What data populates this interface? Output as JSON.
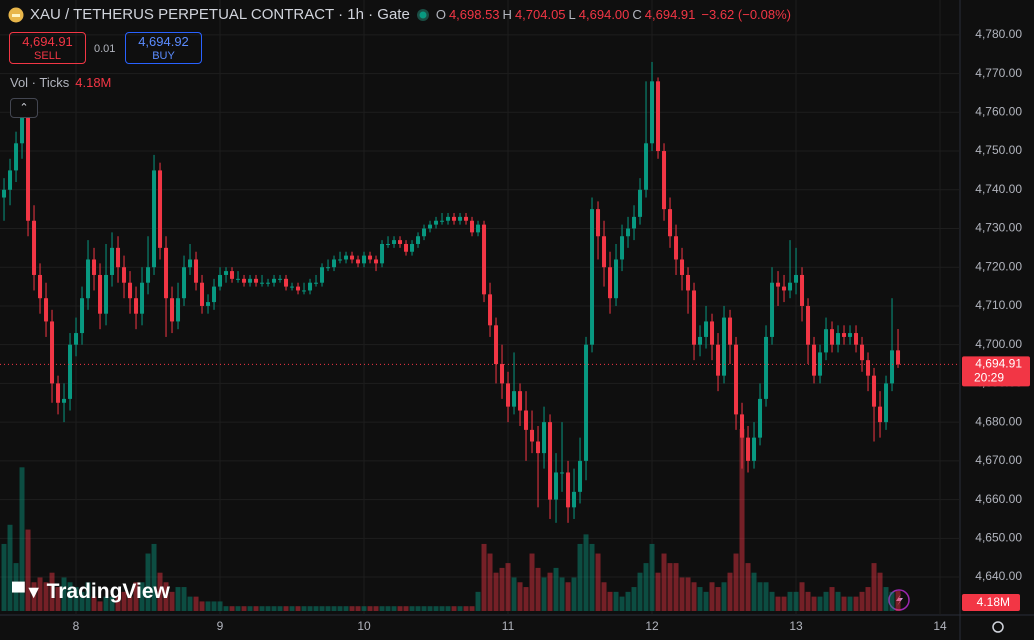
{
  "chart_data": {
    "type": "candlestick",
    "ylim": [
      4630.2,
      4789.0
    ],
    "xlim": [
      -0.67,
      159.33
    ],
    "yticks": [
      {
        "value": 4780,
        "label": "4,780.00"
      },
      {
        "value": 4770,
        "label": "4,770.00"
      },
      {
        "value": 4760,
        "label": "4,760.00"
      },
      {
        "value": 4750,
        "label": "4,750.00"
      },
      {
        "value": 4740,
        "label": "4,740.00"
      },
      {
        "value": 4730,
        "label": "4,730.00"
      },
      {
        "value": 4720,
        "label": "4,720.00"
      },
      {
        "value": 4710,
        "label": "4,710.00"
      },
      {
        "value": 4700,
        "label": "4,700.00"
      },
      {
        "value": 4690,
        "label": "4,690.00"
      },
      {
        "value": 4680,
        "label": "4,680.00"
      },
      {
        "value": 4670,
        "label": "4,670.00"
      },
      {
        "value": 4660,
        "label": "4,660.00"
      },
      {
        "value": 4650,
        "label": "4,650.00"
      },
      {
        "value": 4640,
        "label": "4,640.00"
      }
    ],
    "xticks": [
      {
        "value": 12,
        "label": "8"
      },
      {
        "value": 36,
        "label": "9"
      },
      {
        "value": 60,
        "label": "10"
      },
      {
        "value": 84,
        "label": "11"
      },
      {
        "value": 108,
        "label": "12"
      },
      {
        "value": 132,
        "label": "13"
      },
      {
        "value": 156,
        "label": "14"
      }
    ],
    "up_color": "#089981",
    "down_color": "#f23645",
    "grid": true,
    "candles": [
      [
        4738,
        4743,
        4732,
        4740
      ],
      [
        4740,
        4748,
        4736,
        4745
      ],
      [
        4745,
        4755,
        4742,
        4752
      ],
      [
        4752,
        4762,
        4748,
        4760
      ],
      [
        4760,
        4762,
        4728,
        4732
      ],
      [
        4732,
        4736,
        4714,
        4718
      ],
      [
        4718,
        4721,
        4708,
        4712
      ],
      [
        4712,
        4716,
        4702,
        4706
      ],
      [
        4706,
        4709,
        4685,
        4690
      ],
      [
        4690,
        4692,
        4682,
        4685
      ],
      [
        4685,
        4690,
        4680,
        4686
      ],
      [
        4686,
        4703,
        4683,
        4700
      ],
      [
        4700,
        4707,
        4697,
        4703
      ],
      [
        4703,
        4715,
        4700,
        4712
      ],
      [
        4712,
        4727,
        4709,
        4722
      ],
      [
        4722,
        4725,
        4714,
        4718
      ],
      [
        4718,
        4721,
        4704,
        4708
      ],
      [
        4708,
        4726,
        4705,
        4718
      ],
      [
        4718,
        4729,
        4715,
        4725
      ],
      [
        4725,
        4728,
        4716,
        4720
      ],
      [
        4720,
        4723,
        4712,
        4716
      ],
      [
        4716,
        4719,
        4708,
        4712
      ],
      [
        4712,
        4715,
        4704,
        4708
      ],
      [
        4708,
        4720,
        4705,
        4716
      ],
      [
        4716,
        4728,
        4713,
        4720
      ],
      [
        4720,
        4749,
        4718,
        4745
      ],
      [
        4745,
        4747,
        4722,
        4725
      ],
      [
        4725,
        4728,
        4702,
        4712
      ],
      [
        4712,
        4715,
        4703,
        4706
      ],
      [
        4706,
        4716,
        4704,
        4712
      ],
      [
        4712,
        4723,
        4710,
        4720
      ],
      [
        4720,
        4726,
        4718,
        4722
      ],
      [
        4722,
        4724,
        4714,
        4716
      ],
      [
        4716,
        4718,
        4708,
        4710
      ],
      [
        4710,
        4713,
        4708,
        4711
      ],
      [
        4711,
        4717,
        4709,
        4715
      ],
      [
        4715,
        4720,
        4714,
        4718
      ],
      [
        4718,
        4720,
        4716,
        4719
      ],
      [
        4719,
        4720,
        4716,
        4717
      ],
      [
        4717,
        4719,
        4716,
        4717
      ],
      [
        4717,
        4718,
        4715,
        4716
      ],
      [
        4716,
        4718,
        4715,
        4717
      ],
      [
        4717,
        4718,
        4715,
        4716
      ],
      [
        4716,
        4718,
        4715,
        4716
      ],
      [
        4716,
        4717,
        4715,
        4716
      ],
      [
        4716,
        4718,
        4715,
        4717
      ],
      [
        4717,
        4718,
        4716,
        4717
      ],
      [
        4717,
        4718,
        4714,
        4715
      ],
      [
        4715,
        4716,
        4714,
        4715
      ],
      [
        4715,
        4716,
        4713,
        4714
      ],
      [
        4714,
        4716,
        4713,
        4714
      ],
      [
        4714,
        4717,
        4713,
        4716
      ],
      [
        4716,
        4718,
        4715,
        4716
      ],
      [
        4716,
        4721,
        4715,
        4720
      ],
      [
        4720,
        4722,
        4719,
        4720
      ],
      [
        4720,
        4723,
        4719,
        4722
      ],
      [
        4722,
        4724,
        4721,
        4722
      ],
      [
        4722,
        4724,
        4721,
        4723
      ],
      [
        4723,
        4724,
        4721,
        4722
      ],
      [
        4722,
        4723,
        4720,
        4721
      ],
      [
        4721,
        4724,
        4720,
        4723
      ],
      [
        4723,
        4724,
        4721,
        4722
      ],
      [
        4722,
        4723,
        4719,
        4721
      ],
      [
        4721,
        4727,
        4720,
        4726
      ],
      [
        4726,
        4728,
        4725,
        4726
      ],
      [
        4726,
        4728,
        4725,
        4727
      ],
      [
        4727,
        4728,
        4725,
        4726
      ],
      [
        4726,
        4727,
        4723,
        4724
      ],
      [
        4724,
        4727,
        4723,
        4726
      ],
      [
        4726,
        4729,
        4725,
        4728
      ],
      [
        4728,
        4731,
        4727,
        4730
      ],
      [
        4730,
        4732,
        4729,
        4731
      ],
      [
        4731,
        4733,
        4730,
        4732
      ],
      [
        4732,
        4734,
        4731,
        4732
      ],
      [
        4732,
        4734,
        4731,
        4733
      ],
      [
        4733,
        4734,
        4731,
        4732
      ],
      [
        4732,
        4734,
        4731,
        4733
      ],
      [
        4733,
        4734,
        4731,
        4732
      ],
      [
        4732,
        4733,
        4728,
        4729
      ],
      [
        4729,
        4732,
        4728,
        4731
      ],
      [
        4731,
        4732,
        4711,
        4713
      ],
      [
        4713,
        4716,
        4702,
        4705
      ],
      [
        4705,
        4707,
        4690,
        4695
      ],
      [
        4695,
        4700,
        4686,
        4690
      ],
      [
        4690,
        4693,
        4680,
        4684
      ],
      [
        4684,
        4698,
        4682,
        4688
      ],
      [
        4688,
        4690,
        4679,
        4683
      ],
      [
        4683,
        4688,
        4670,
        4678
      ],
      [
        4678,
        4683,
        4672,
        4675
      ],
      [
        4675,
        4679,
        4658,
        4672
      ],
      [
        4672,
        4684,
        4668,
        4680
      ],
      [
        4680,
        4682,
        4655,
        4660
      ],
      [
        4660,
        4672,
        4654,
        4667
      ],
      [
        4667,
        4680,
        4662,
        4667
      ],
      [
        4667,
        4670,
        4654,
        4658
      ],
      [
        4658,
        4668,
        4655,
        4662
      ],
      [
        4662,
        4676,
        4659,
        4670
      ],
      [
        4670,
        4702,
        4665,
        4700
      ],
      [
        4700,
        4738,
        4698,
        4735
      ],
      [
        4735,
        4737,
        4722,
        4728
      ],
      [
        4728,
        4732,
        4715,
        4720
      ],
      [
        4720,
        4724,
        4708,
        4712
      ],
      [
        4712,
        4726,
        4710,
        4722
      ],
      [
        4722,
        4731,
        4719,
        4728
      ],
      [
        4728,
        4733,
        4725,
        4730
      ],
      [
        4730,
        4736,
        4727,
        4733
      ],
      [
        4733,
        4743,
        4731,
        4740
      ],
      [
        4740,
        4768,
        4738,
        4752
      ],
      [
        4752,
        4773,
        4750,
        4768
      ],
      [
        4768,
        4769,
        4748,
        4750
      ],
      [
        4750,
        4752,
        4732,
        4735
      ],
      [
        4735,
        4738,
        4725,
        4728
      ],
      [
        4728,
        4731,
        4718,
        4722
      ],
      [
        4722,
        4725,
        4714,
        4718
      ],
      [
        4718,
        4720,
        4708,
        4714
      ],
      [
        4714,
        4716,
        4696,
        4700
      ],
      [
        4700,
        4705,
        4697,
        4702
      ],
      [
        4702,
        4710,
        4699,
        4706
      ],
      [
        4706,
        4708,
        4696,
        4700
      ],
      [
        4700,
        4703,
        4688,
        4692
      ],
      [
        4692,
        4710,
        4690,
        4707
      ],
      [
        4707,
        4709,
        4695,
        4700
      ],
      [
        4700,
        4702,
        4678,
        4682
      ],
      [
        4682,
        4685,
        4668,
        4676
      ],
      [
        4676,
        4679,
        4667,
        4670
      ],
      [
        4670,
        4680,
        4668,
        4676
      ],
      [
        4676,
        4690,
        4674,
        4686
      ],
      [
        4686,
        4705,
        4684,
        4702
      ],
      [
        4702,
        4720,
        4700,
        4716
      ],
      [
        4716,
        4719,
        4710,
        4715
      ],
      [
        4715,
        4718,
        4711,
        4714
      ],
      [
        4714,
        4727,
        4712,
        4716
      ],
      [
        4716,
        4725,
        4713,
        4718
      ],
      [
        4718,
        4720,
        4706,
        4710
      ],
      [
        4710,
        4712,
        4695,
        4700
      ],
      [
        4700,
        4702,
        4690,
        4692
      ],
      [
        4692,
        4700,
        4690,
        4698
      ],
      [
        4698,
        4707,
        4696,
        4704
      ],
      [
        4704,
        4706,
        4698,
        4700
      ],
      [
        4700,
        4705,
        4698,
        4703
      ],
      [
        4703,
        4705,
        4700,
        4702
      ],
      [
        4702,
        4705,
        4700,
        4703
      ],
      [
        4703,
        4705,
        4698,
        4700
      ],
      [
        4700,
        4702,
        4693,
        4696
      ],
      [
        4696,
        4698,
        4688,
        4692
      ],
      [
        4692,
        4694,
        4675,
        4684
      ],
      [
        4684,
        4688,
        4676,
        4680
      ],
      [
        4680,
        4692,
        4678,
        4690
      ],
      [
        4690,
        4712,
        4688,
        4698.53
      ],
      [
        4698.53,
        4704.05,
        4694,
        4694.91
      ]
    ],
    "volume": [
      14,
      18,
      10,
      30,
      17,
      6,
      7,
      6,
      8,
      5,
      7,
      6,
      5,
      4,
      6,
      3,
      2,
      3,
      3,
      3,
      4,
      3,
      6,
      6,
      12,
      14,
      8,
      6,
      4,
      5,
      5,
      3,
      3,
      2,
      2,
      2,
      2,
      1,
      1,
      1,
      1,
      1,
      1,
      1,
      1,
      1,
      1,
      1,
      1,
      1,
      1,
      1,
      1,
      1,
      1,
      1,
      1,
      1,
      1,
      1,
      1,
      1,
      1,
      1,
      1,
      1,
      1,
      1,
      1,
      1,
      1,
      1,
      1,
      1,
      1,
      1,
      1,
      1,
      1,
      4,
      14,
      12,
      8,
      9,
      10,
      7,
      6,
      5,
      12,
      9,
      7,
      8,
      9,
      7,
      6,
      7,
      14,
      16,
      14,
      12,
      6,
      4,
      4,
      3,
      4,
      5,
      8,
      10,
      14,
      8,
      12,
      10,
      10,
      7,
      7,
      6,
      5,
      4,
      6,
      5,
      6,
      8,
      12,
      38,
      10,
      8,
      6,
      6,
      4,
      3,
      3,
      4,
      4,
      6,
      4,
      3,
      3,
      4,
      5,
      4,
      3,
      3,
      3,
      4,
      5,
      10,
      8,
      5,
      4,
      4.18
    ],
    "volume_label": "4.18M",
    "last_price": {
      "value": 4694.91,
      "label": "4,694.91",
      "countdown": "20:29"
    }
  },
  "header": {
    "title": "XAU / TETHERUS PERPETUAL CONTRACT · 1h · Gate",
    "ohlc": [
      {
        "k": "O",
        "v": "4,698.53"
      },
      {
        "k": "H",
        "v": "4,704.05"
      },
      {
        "k": "L",
        "v": "4,694.00"
      },
      {
        "k": "C",
        "v": "4,694.91"
      }
    ],
    "change": "−3.62 (−0.08%)",
    "sell": {
      "price": "4,694.91",
      "label": "SELL"
    },
    "spread": "0.01",
    "buy": {
      "price": "4,694.92",
      "label": "BUY"
    },
    "volume_title": "Vol · Ticks",
    "volume_value": "4.18M",
    "logo": "TradingView"
  }
}
